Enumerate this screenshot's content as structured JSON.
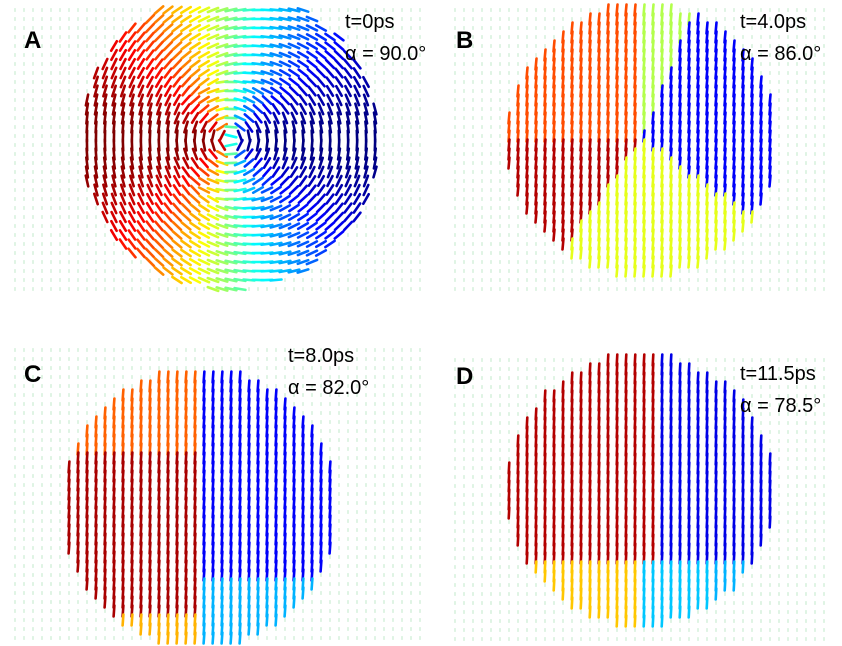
{
  "panels": [
    {
      "label": "A",
      "time": "t=0ps",
      "angle": "α = 90.0°"
    },
    {
      "label": "B",
      "time": "t=4.0ps",
      "angle": "α = 86.0°"
    },
    {
      "label": "C",
      "time": "t=8.0ps",
      "angle": "α = 82.0°"
    },
    {
      "label": "D",
      "time": "t=11.5ps",
      "angle": "α = 78.5°"
    }
  ]
}
